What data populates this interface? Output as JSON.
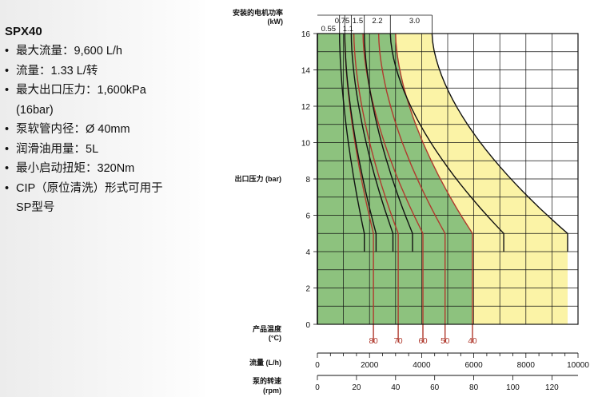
{
  "spec_panel": {
    "title": "SPX40",
    "items": [
      "最大流量：9,600 L/h",
      "流量：1.33 L/转",
      "最大出口压力：1,600kPa",
      "(16bar)",
      "泵软管内径：Ø 40mm",
      "润滑油用量：5L",
      "最小启动扭矩：320Nm",
      "CIP（原位清洗）形式可用于",
      "SP型号"
    ]
  },
  "chart_data": {
    "type": "line",
    "power_label_line1": "安装的电机功率",
    "power_label_line2": "(kW)",
    "ylabel": "出口压力 (bar)",
    "temp_label_line1": "产品温度",
    "temp_label_line2": "(°C)",
    "flow_label": "流量 (L/h)",
    "speed_label_line1": "泵的转速",
    "speed_label_line2": "(rpm)",
    "ylim": [
      0,
      16
    ],
    "xlim": [
      0,
      10000
    ],
    "y_ticks": [
      "0",
      "2",
      "4",
      "6",
      "8",
      "10",
      "12",
      "14",
      "16"
    ],
    "flow_ticks": [
      "0",
      "2000",
      "4000",
      "6000",
      "8000",
      "10000"
    ],
    "speed_ticks": [
      "0",
      "20",
      "40",
      "60",
      "80",
      "100",
      "120"
    ],
    "colors": {
      "green_zone": "#8dc27e",
      "yellow_zone": "#fbf3a6",
      "motor_line": "#111111",
      "temp_line": "#b03a2e",
      "temp_label": "#b03a2e",
      "grid": "#111111"
    },
    "grid": true,
    "green_zone_boundary": {
      "base_flow": 5950,
      "top_flow": 3000,
      "knee_pressure": 5
    },
    "yellow_zone_boundary": {
      "base_flow": 9600,
      "top_flow": 4400,
      "knee_pressure": 5
    },
    "motor_power_curves": [
      {
        "label": "0.55",
        "top_flow": 850,
        "base_flow": 1800
      },
      {
        "label": "0.75",
        "top_flow": 1050,
        "base_flow": 2250
      },
      {
        "label": "1.1",
        "top_flow": 1300,
        "base_flow": 2900
      },
      {
        "label": "1.5",
        "top_flow": 1800,
        "base_flow": 3650
      },
      {
        "label": "2.2",
        "top_flow": 2800,
        "base_flow": 7150
      },
      {
        "label": "3.0",
        "top_flow": 4400,
        "base_flow": 9600
      }
    ],
    "temperature_curves": [
      {
        "label": "80",
        "top_flow": 1050,
        "base_flow": 2150
      },
      {
        "label": "70",
        "top_flow": 1400,
        "base_flow": 3100
      },
      {
        "label": "60",
        "top_flow": 1750,
        "base_flow": 4050
      },
      {
        "label": "50",
        "top_flow": 2350,
        "base_flow": 4900
      },
      {
        "label": "40",
        "top_flow": 3000,
        "base_flow": 5950
      }
    ]
  }
}
